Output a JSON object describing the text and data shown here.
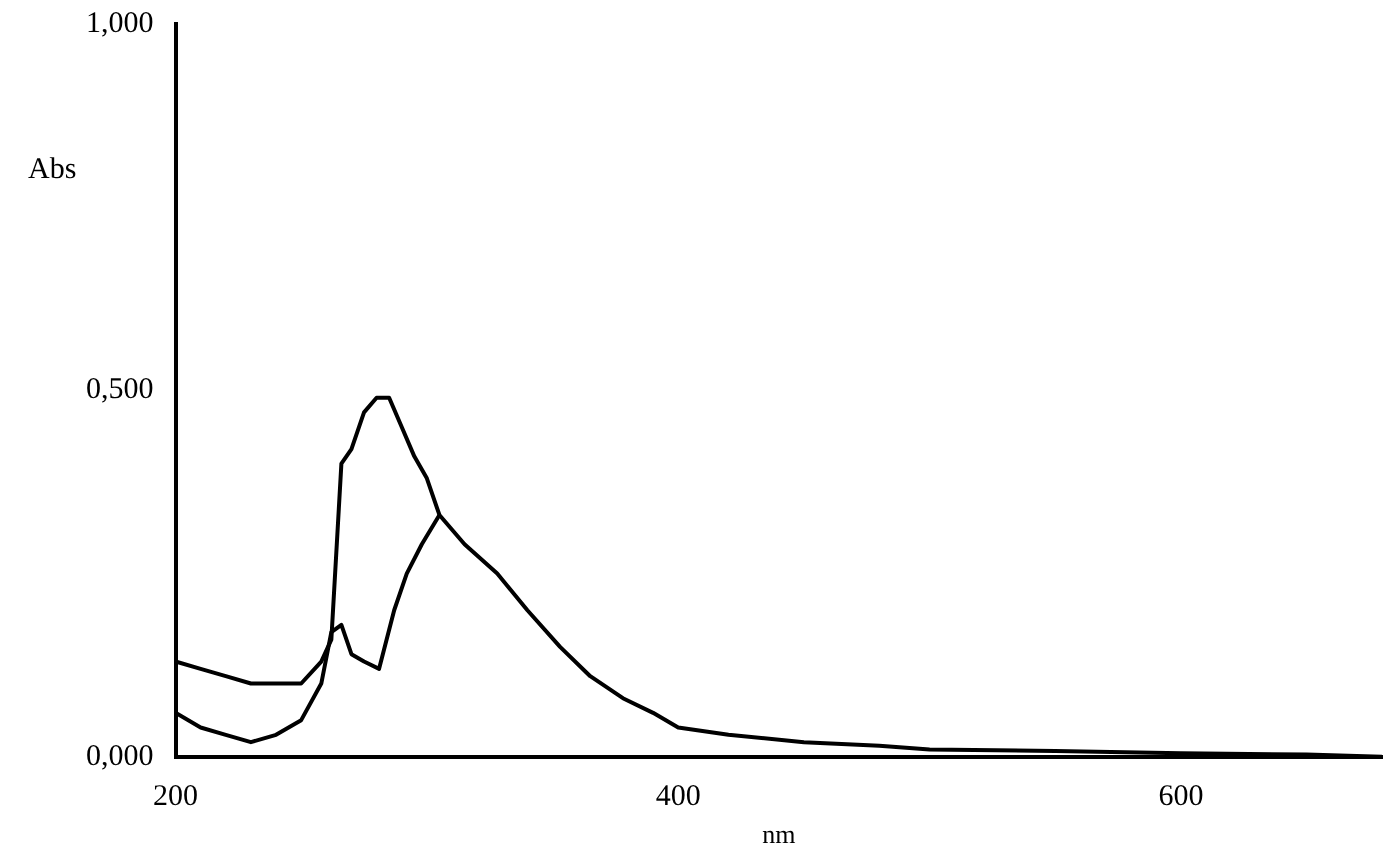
{
  "chart_data": {
    "type": "line",
    "xlabel": "nm",
    "ylabel": "Abs",
    "xlim": [
      200,
      680
    ],
    "xticks": [
      200,
      400,
      600
    ],
    "ylim": [
      0,
      1
    ],
    "yticks": [
      {
        "value": 0,
        "label": "0,000"
      },
      {
        "value": 0.5,
        "label": "0,500"
      },
      {
        "value": 1,
        "label": "1,000"
      }
    ],
    "grid": false,
    "legend": false,
    "marker": "none",
    "line_style": "solid",
    "series": [
      {
        "color": "#000000",
        "x": [
          200,
          210,
          220,
          230,
          240,
          250,
          258,
          262,
          266,
          270,
          275,
          280,
          285,
          290,
          295,
          300,
          305,
          315,
          328,
          340,
          353,
          365,
          378,
          390,
          400,
          420,
          450,
          480,
          500,
          550,
          600,
          650,
          680
        ],
        "values": [
          0.13,
          0.12,
          0.11,
          0.1,
          0.1,
          0.1,
          0.13,
          0.16,
          0.4,
          0.42,
          0.47,
          0.49,
          0.49,
          0.45,
          0.41,
          0.38,
          0.33,
          0.29,
          0.25,
          0.2,
          0.15,
          0.11,
          0.08,
          0.06,
          0.04,
          0.03,
          0.02,
          0.015,
          0.01,
          0.008,
          0.005,
          0.003,
          0.0
        ]
      },
      {
        "color": "#000000",
        "x": [
          200,
          210,
          220,
          230,
          240,
          250,
          258,
          262,
          266,
          270,
          275,
          281,
          287,
          292,
          298,
          305
        ],
        "values": [
          0.06,
          0.04,
          0.03,
          0.02,
          0.03,
          0.05,
          0.1,
          0.17,
          0.18,
          0.14,
          0.13,
          0.12,
          0.2,
          0.25,
          0.29,
          0.33
        ]
      }
    ]
  }
}
